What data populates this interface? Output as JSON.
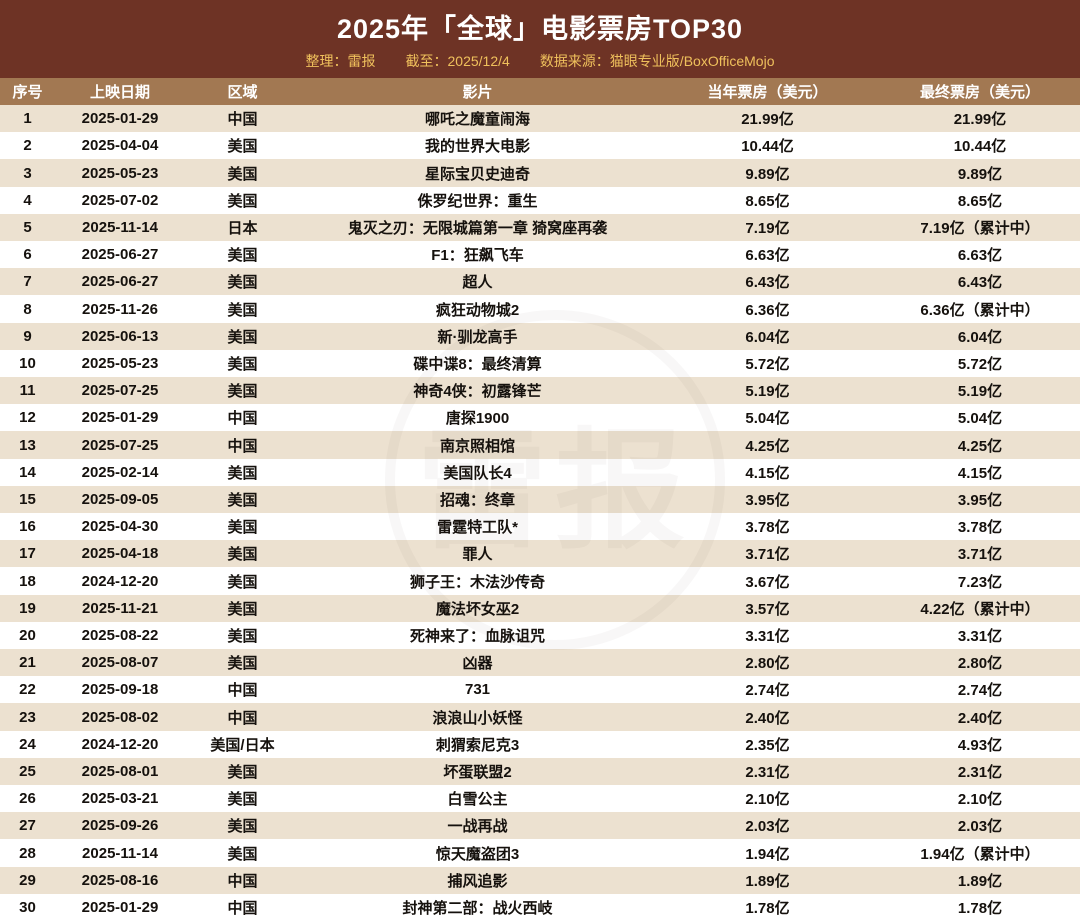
{
  "header": {
    "title": "2025年「全球」电影票房TOP30",
    "compiled_by": "整理：雷报",
    "as_of": "截至：2025/12/4",
    "source": "数据来源：猫眼专业版/BoxOfficeMojo"
  },
  "watermark_text": "雷报",
  "colors": {
    "title_bg": "#6e3325",
    "subtitle_gold": "#efc05c",
    "table_header_bg": "#a27852",
    "row_beige": "#ece1d0",
    "row_white": "#ffffff",
    "text": "#15110d"
  },
  "chart_data": {
    "type": "table",
    "title": "2025年「全球」电影票房TOP30",
    "columns": [
      "序号",
      "上映日期",
      "区域",
      "影片",
      "当年票房（美元）",
      "最终票房（美元）"
    ],
    "rows": [
      [
        "1",
        "2025-01-29",
        "中国",
        "哪吒之魔童闹海",
        "21.99亿",
        "21.99亿"
      ],
      [
        "2",
        "2025-04-04",
        "美国",
        "我的世界大电影",
        "10.44亿",
        "10.44亿"
      ],
      [
        "3",
        "2025-05-23",
        "美国",
        "星际宝贝史迪奇",
        "9.89亿",
        "9.89亿"
      ],
      [
        "4",
        "2025-07-02",
        "美国",
        "侏罗纪世界：重生",
        "8.65亿",
        "8.65亿"
      ],
      [
        "5",
        "2025-11-14",
        "日本",
        "鬼灭之刃：无限城篇第一章 猗窝座再袭",
        "7.19亿",
        "7.19亿（累计中）"
      ],
      [
        "6",
        "2025-06-27",
        "美国",
        "F1：狂飙飞车",
        "6.63亿",
        "6.63亿"
      ],
      [
        "7",
        "2025-06-27",
        "美国",
        "超人",
        "6.43亿",
        "6.43亿"
      ],
      [
        "8",
        "2025-11-26",
        "美国",
        "疯狂动物城2",
        "6.36亿",
        "6.36亿（累计中）"
      ],
      [
        "9",
        "2025-06-13",
        "美国",
        "新·驯龙高手",
        "6.04亿",
        "6.04亿"
      ],
      [
        "10",
        "2025-05-23",
        "美国",
        "碟中谍8：最终清算",
        "5.72亿",
        "5.72亿"
      ],
      [
        "11",
        "2025-07-25",
        "美国",
        "神奇4侠：初露锋芒",
        "5.19亿",
        "5.19亿"
      ],
      [
        "12",
        "2025-01-29",
        "中国",
        "唐探1900",
        "5.04亿",
        "5.04亿"
      ],
      [
        "13",
        "2025-07-25",
        "中国",
        "南京照相馆",
        "4.25亿",
        "4.25亿"
      ],
      [
        "14",
        "2025-02-14",
        "美国",
        "美国队长4",
        "4.15亿",
        "4.15亿"
      ],
      [
        "15",
        "2025-09-05",
        "美国",
        "招魂：终章",
        "3.95亿",
        "3.95亿"
      ],
      [
        "16",
        "2025-04-30",
        "美国",
        "雷霆特工队*",
        "3.78亿",
        "3.78亿"
      ],
      [
        "17",
        "2025-04-18",
        "美国",
        "罪人",
        "3.71亿",
        "3.71亿"
      ],
      [
        "18",
        "2024-12-20",
        "美国",
        "狮子王：木法沙传奇",
        "3.67亿",
        "7.23亿"
      ],
      [
        "19",
        "2025-11-21",
        "美国",
        "魔法坏女巫2",
        "3.57亿",
        "4.22亿（累计中）"
      ],
      [
        "20",
        "2025-08-22",
        "美国",
        "死神来了：血脉诅咒",
        "3.31亿",
        "3.31亿"
      ],
      [
        "21",
        "2025-08-07",
        "美国",
        "凶器",
        "2.80亿",
        "2.80亿"
      ],
      [
        "22",
        "2025-09-18",
        "中国",
        "731",
        "2.74亿",
        "2.74亿"
      ],
      [
        "23",
        "2025-08-02",
        "中国",
        "浪浪山小妖怪",
        "2.40亿",
        "2.40亿"
      ],
      [
        "24",
        "2024-12-20",
        "美国/日本",
        "刺猬索尼克3",
        "2.35亿",
        "4.93亿"
      ],
      [
        "25",
        "2025-08-01",
        "美国",
        "坏蛋联盟2",
        "2.31亿",
        "2.31亿"
      ],
      [
        "26",
        "2025-03-21",
        "美国",
        "白雪公主",
        "2.10亿",
        "2.10亿"
      ],
      [
        "27",
        "2025-09-26",
        "美国",
        "一战再战",
        "2.03亿",
        "2.03亿"
      ],
      [
        "28",
        "2025-11-14",
        "美国",
        "惊天魔盗团3",
        "1.94亿",
        "1.94亿（累计中）"
      ],
      [
        "29",
        "2025-08-16",
        "中国",
        "捕风追影",
        "1.89亿",
        "1.89亿"
      ],
      [
        "30",
        "2025-01-29",
        "中国",
        "封神第二部：战火西岐",
        "1.78亿",
        "1.78亿"
      ]
    ]
  }
}
